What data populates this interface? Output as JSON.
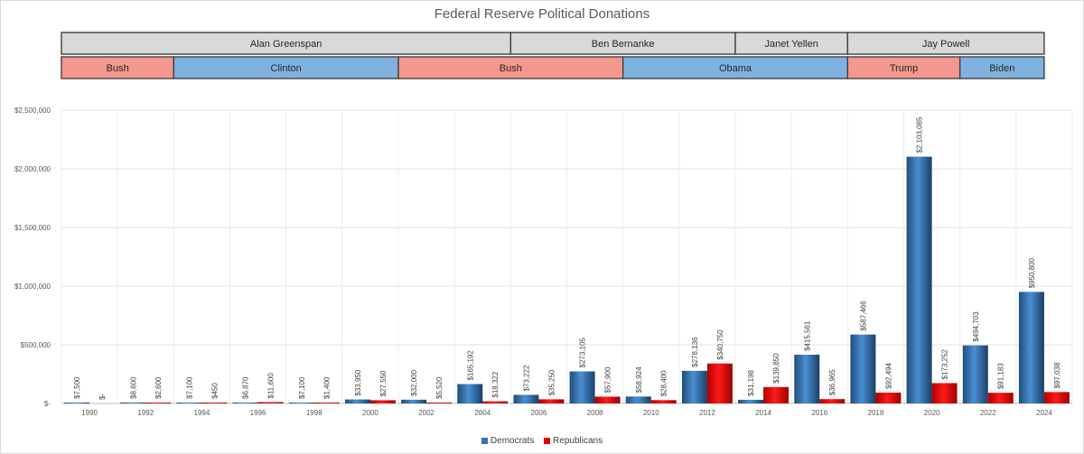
{
  "chart_data": {
    "type": "bar",
    "title": "Federal Reserve Political Donations",
    "categories": [
      "1990",
      "1992",
      "1994",
      "1996",
      "1998",
      "2000",
      "2002",
      "2004",
      "2006",
      "2008",
      "2010",
      "2012",
      "2014",
      "2016",
      "2018",
      "2020",
      "2022",
      "2024"
    ],
    "series": [
      {
        "name": "Democrats",
        "color": "#2e75b6",
        "values": [
          7500,
          8600,
          7100,
          6870,
          7100,
          33950,
          32000,
          165192,
          73222,
          273105,
          58924,
          278136,
          31198,
          415561,
          587466,
          2103085,
          494703,
          950800
        ],
        "labels": [
          "$7,500",
          "$8,600",
          "$7,100",
          "$6,870",
          "$7,100",
          "$33,950",
          "$32,000",
          "$165,192",
          "$73,222",
          "$273,105",
          "$58,924",
          "$278,136",
          "$31,198",
          "$415,561",
          "$587,466",
          "$2,103,085",
          "$494,703",
          "$950,800"
        ]
      },
      {
        "name": "Republicans",
        "color": "#e00000",
        "values": [
          0,
          2600,
          450,
          11600,
          1400,
          27550,
          5520,
          18322,
          35250,
          57900,
          28400,
          340750,
          139850,
          36965,
          92494,
          173252,
          91183,
          97038
        ],
        "labels": [
          "$-",
          "$2,600",
          "$450",
          "$11,600",
          "$1,400",
          "$27,550",
          "$5,520",
          "$18,322",
          "$35,250",
          "$57,900",
          "$28,400",
          "$340,750",
          "$139,850",
          "$36,965",
          "$92,494",
          "$173,252",
          "$91,183",
          "$97,038"
        ]
      }
    ],
    "ylim": [
      0,
      2500000
    ],
    "y_ticks": [
      0,
      500000,
      1000000,
      1500000,
      2000000,
      2500000
    ],
    "y_tick_labels": [
      "$-",
      "$500,000",
      "$1,000,000",
      "$1,500,000",
      "$2,000,000",
      "$2,500,000"
    ],
    "grid": true,
    "legend_position": "bottom",
    "fed_chairs": [
      {
        "name": "Alan Greenspan",
        "from": "1990",
        "to": "2005"
      },
      {
        "name": "Ben Bernanke",
        "from": "2006",
        "to": "2013"
      },
      {
        "name": "Janet Yellen",
        "from": "2014",
        "to": "2017"
      },
      {
        "name": "Jay Powell",
        "from": "2018",
        "to": "2024"
      }
    ],
    "presidents": [
      {
        "name": "Bush",
        "party": "R",
        "from": "1990",
        "to": "1993"
      },
      {
        "name": "Clinton",
        "party": "D",
        "from": "1994",
        "to": "2001"
      },
      {
        "name": "Bush",
        "party": "R",
        "from": "2002",
        "to": "2009"
      },
      {
        "name": "Obama",
        "party": "D",
        "from": "2010",
        "to": "2017"
      },
      {
        "name": "Trump",
        "party": "R",
        "from": "2018",
        "to": "2021"
      },
      {
        "name": "Biden",
        "party": "D",
        "from": "2022",
        "to": "2024"
      }
    ],
    "band_colors": {
      "chair": "#d9d9d9",
      "R": "#f4978e",
      "D": "#7fb2df"
    }
  }
}
